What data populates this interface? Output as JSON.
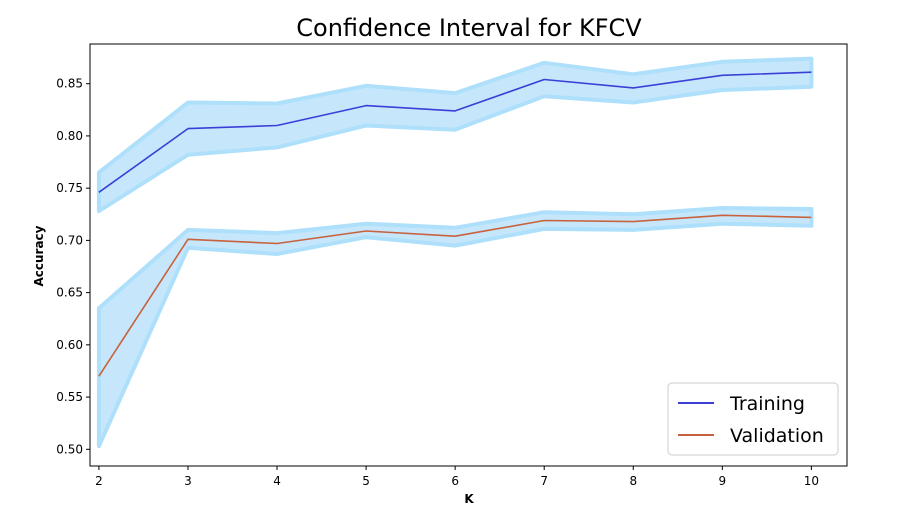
{
  "chart_data": {
    "type": "line",
    "title": "Confidence Interval for KFCV",
    "xlabel": "K",
    "ylabel": "Accuracy",
    "x": [
      2,
      3,
      4,
      5,
      6,
      7,
      8,
      9,
      10
    ],
    "xlim": [
      1.9,
      10.4
    ],
    "ylim": [
      0.484,
      0.888
    ],
    "xticks": [
      2,
      3,
      4,
      5,
      6,
      7,
      8,
      9,
      10
    ],
    "yticks": [
      0.5,
      0.55,
      0.6,
      0.65,
      0.7,
      0.75,
      0.8,
      0.85
    ],
    "ytick_labels": [
      "0.50",
      "0.55",
      "0.60",
      "0.65",
      "0.70",
      "0.75",
      "0.80",
      "0.85"
    ],
    "grid": false,
    "legend_position": "bottom-right",
    "series": [
      {
        "name": "Training",
        "color": "#3a3fd8",
        "values": [
          0.746,
          0.807,
          0.81,
          0.829,
          0.824,
          0.854,
          0.846,
          0.858,
          0.861
        ],
        "lower": [
          0.728,
          0.782,
          0.789,
          0.81,
          0.806,
          0.838,
          0.832,
          0.844,
          0.847
        ],
        "upper": [
          0.765,
          0.832,
          0.831,
          0.848,
          0.841,
          0.87,
          0.859,
          0.871,
          0.874
        ]
      },
      {
        "name": "Validation",
        "color": "#c8623e",
        "values": [
          0.57,
          0.701,
          0.697,
          0.709,
          0.704,
          0.719,
          0.718,
          0.724,
          0.722
        ],
        "lower": [
          0.503,
          0.693,
          0.687,
          0.703,
          0.695,
          0.711,
          0.71,
          0.716,
          0.714
        ],
        "upper": [
          0.635,
          0.71,
          0.707,
          0.716,
          0.712,
          0.727,
          0.725,
          0.731,
          0.73
        ]
      }
    ],
    "band_fill_color": "#c6e7fb",
    "band_edge_color": "#aee0fb"
  }
}
